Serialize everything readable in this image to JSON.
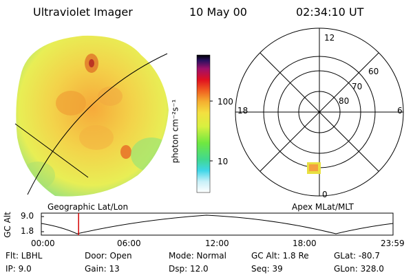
{
  "header": {
    "title": "Ultraviolet Imager",
    "date": "10 May 00",
    "time": "02:34:10 UT"
  },
  "colorbar": {
    "unit_label": "photon cm⁻²s⁻¹",
    "tick_100": "100",
    "tick_10": "10"
  },
  "polar_plot": {
    "ring_labels": [
      "60",
      "70",
      "80"
    ],
    "hour_labels": {
      "top": "12",
      "left": "18",
      "right": "6",
      "bottom": "0"
    }
  },
  "map_labels": {
    "left": "Geographic Lat/Lon",
    "right": "Apex MLat/MLT"
  },
  "orbit_plot": {
    "ylabel": "GC Alt",
    "ytick_top": "9.0",
    "ytick_bottom": "1.8",
    "xticks": [
      "00:00",
      "06:00",
      "12:00",
      "18:00",
      "23:59"
    ],
    "current_time_fraction": 0.106
  },
  "info": {
    "flt": "Flt: LBHL",
    "ip": "IP:  9.0",
    "door": "Door: Open",
    "gain": "Gain: 13",
    "mode": "Mode: Normal",
    "dsp": "Dsp:    12.0",
    "gcalt": "GC Alt: 1.8 Re",
    "seq": "Seq: 39",
    "glat": "GLat: -80.7",
    "glon": "GLon: 328.0"
  },
  "colors": {
    "background": "#ffffff",
    "marker": "#d40000",
    "blob_bright": "#f2e030"
  }
}
